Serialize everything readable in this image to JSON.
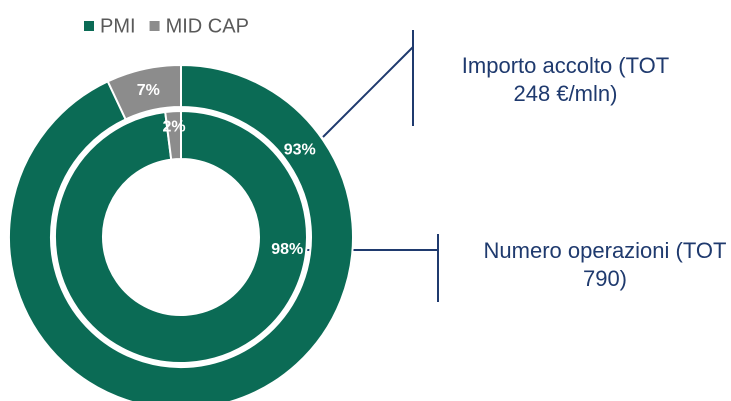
{
  "chart_data": {
    "type": "donut",
    "categories": [
      "Importo accolto (TOT 248 €/mln)",
      "Numero operazioni (TOT 790)"
    ],
    "series": [
      {
        "name": "PMI",
        "color": "#0b6b55",
        "values": [
          93,
          98
        ],
        "value_labels": [
          "93%",
          "98%"
        ]
      },
      {
        "name": "MID CAP",
        "color": "#8c8c8c",
        "values": [
          7,
          2
        ],
        "value_labels": [
          "7%",
          "2%"
        ]
      }
    ],
    "legend": "top"
  }
}
